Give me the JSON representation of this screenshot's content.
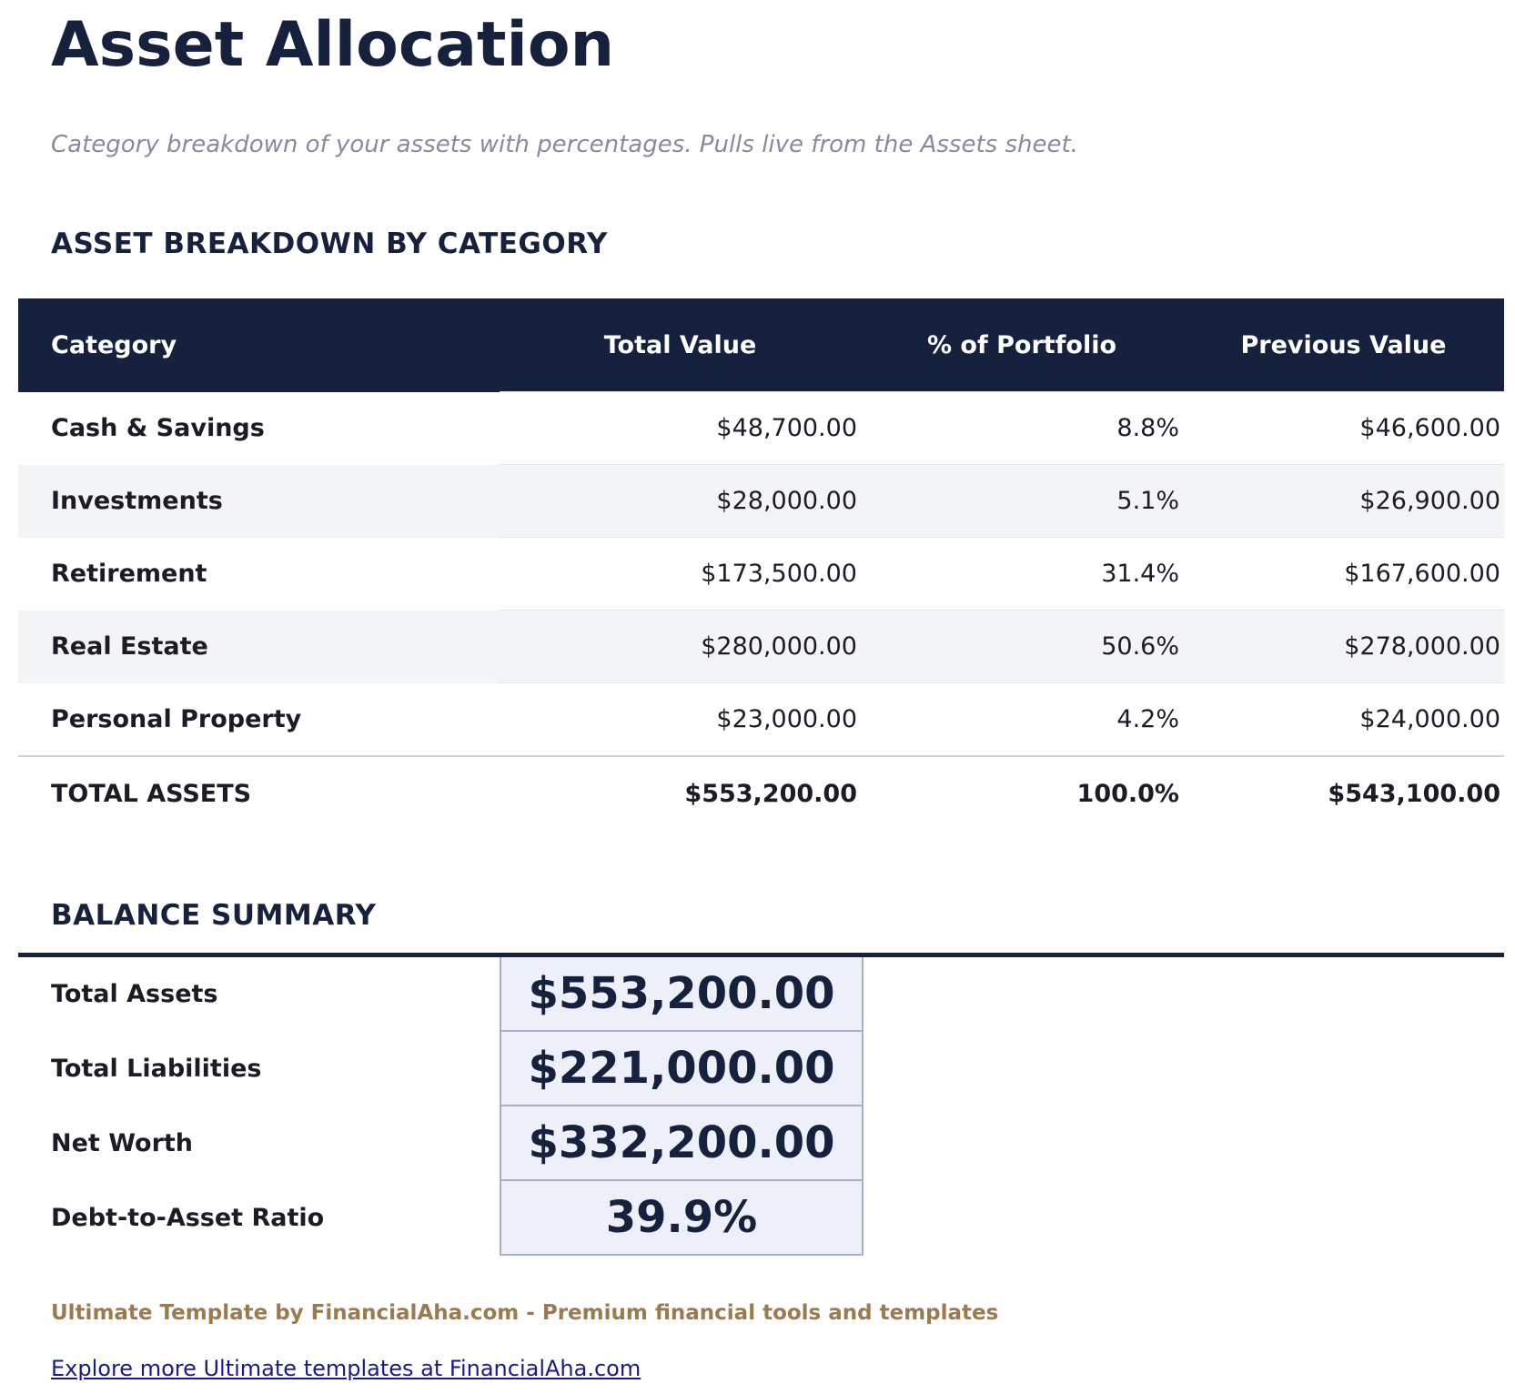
{
  "page": {
    "title": "Asset Allocation",
    "subtitle": "Category breakdown of your assets with percentages. Pulls live from the Assets sheet."
  },
  "breakdown": {
    "heading": "ASSET BREAKDOWN BY CATEGORY",
    "columns": [
      "Category",
      "Total Value",
      "% of Portfolio",
      "Previous Value"
    ],
    "rows": [
      {
        "category": "Cash & Savings",
        "total": "$48,700.00",
        "pct": "8.8%",
        "previous": "$46,600.00"
      },
      {
        "category": "Investments",
        "total": "$28,000.00",
        "pct": "5.1%",
        "previous": "$26,900.00"
      },
      {
        "category": "Retirement",
        "total": "$173,500.00",
        "pct": "31.4%",
        "previous": "$167,600.00"
      },
      {
        "category": "Real Estate",
        "total": "$280,000.00",
        "pct": "50.6%",
        "previous": "$278,000.00"
      },
      {
        "category": "Personal Property",
        "total": "$23,000.00",
        "pct": "4.2%",
        "previous": "$24,000.00"
      }
    ],
    "total": {
      "label": "TOTAL ASSETS",
      "total": "$553,200.00",
      "pct": "100.0%",
      "previous": "$543,100.00"
    }
  },
  "summary": {
    "heading": "BALANCE SUMMARY",
    "items": [
      {
        "label": "Total Assets",
        "value": "$553,200.00"
      },
      {
        "label": "Total Liabilities",
        "value": "$221,000.00"
      },
      {
        "label": "Net Worth",
        "value": "$332,200.00"
      },
      {
        "label": "Debt-to-Asset Ratio",
        "value": "39.9%"
      }
    ]
  },
  "footer": {
    "brand": "Ultimate Template by FinancialAha.com - Premium financial tools and templates",
    "link": "Explore more Ultimate templates at FinancialAha.com"
  },
  "colors": {
    "navy": "#16213e",
    "gold": "#9a7b4f",
    "stripe": "#f3f4f6",
    "summary_box": "#edf0f8"
  }
}
